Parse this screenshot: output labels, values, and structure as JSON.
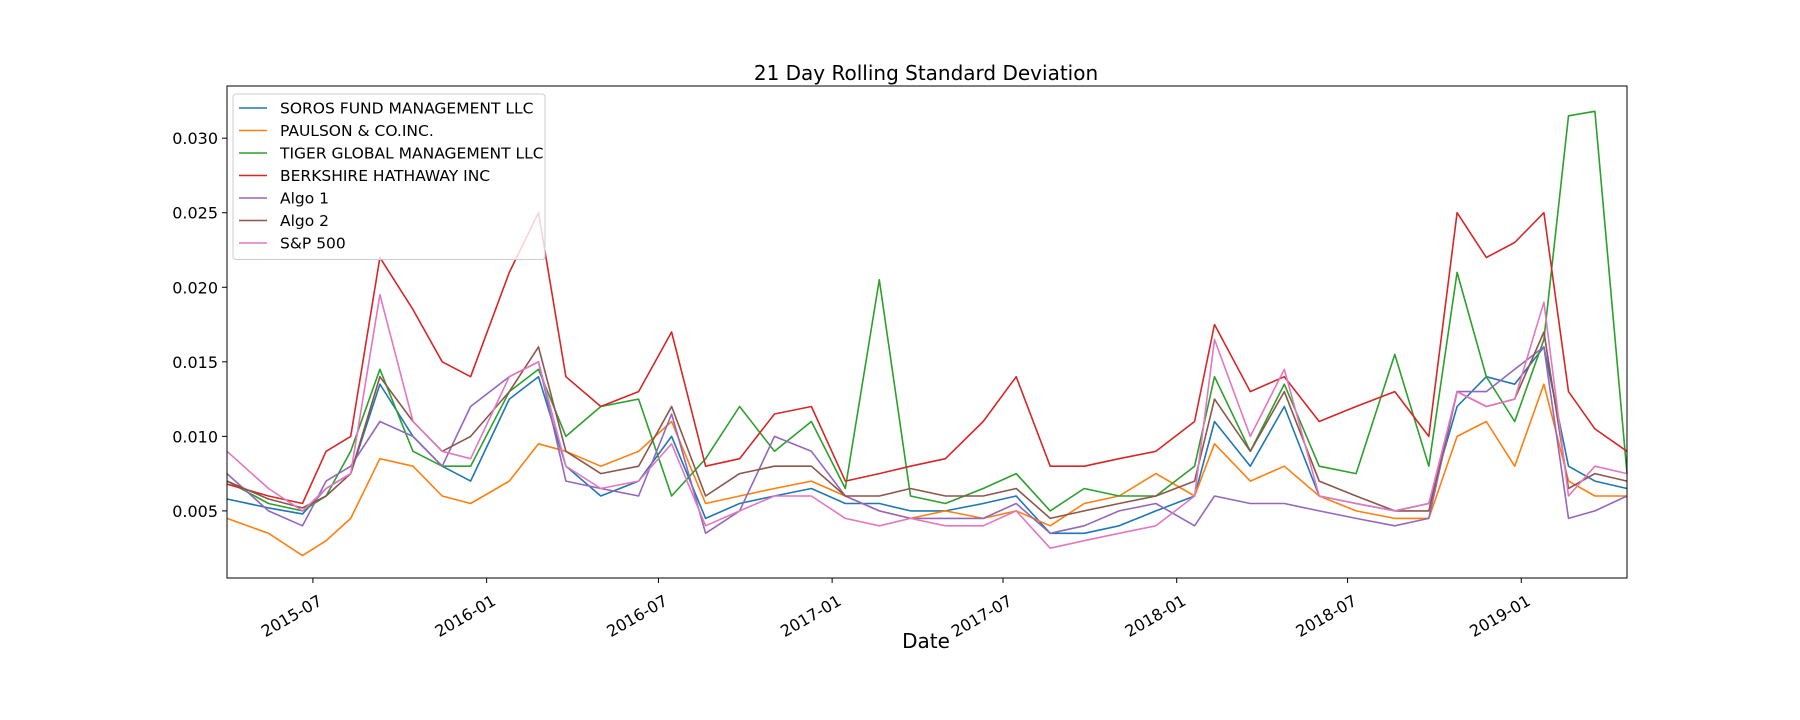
{
  "chart_data": {
    "type": "line",
    "title": "21 Day Rolling Standard Deviation",
    "xlabel": "Date",
    "ylabel": "",
    "xlim": [
      "2015-04-01",
      "2019-04-23"
    ],
    "ylim": [
      0.0005,
      0.0335
    ],
    "yticks": [
      0.005,
      0.01,
      0.015,
      0.02,
      0.025,
      0.03
    ],
    "ytick_labels": [
      "0.005",
      "0.010",
      "0.015",
      "0.020",
      "0.025",
      "0.030"
    ],
    "xticks": [
      "2015-07-01",
      "2016-01-01",
      "2016-07-01",
      "2017-01-01",
      "2017-07-01",
      "2018-01-01",
      "2018-07-01",
      "2019-01-01"
    ],
    "xtick_labels": [
      "2015-07",
      "2016-01",
      "2016-07",
      "2017-01",
      "2017-07",
      "2018-01",
      "2018-07",
      "2019-01"
    ],
    "grid": false,
    "legend_position": "top-left",
    "x": [
      "2015-04-01",
      "2015-05-15",
      "2015-06-20",
      "2015-07-15",
      "2015-08-10",
      "2015-09-10",
      "2015-10-15",
      "2015-11-15",
      "2015-12-15",
      "2016-01-25",
      "2016-02-25",
      "2016-03-25",
      "2016-05-01",
      "2016-06-10",
      "2016-07-15",
      "2016-08-20",
      "2016-09-25",
      "2016-11-01",
      "2016-12-10",
      "2017-01-15",
      "2017-02-20",
      "2017-03-25",
      "2017-05-01",
      "2017-06-10",
      "2017-07-15",
      "2017-08-20",
      "2017-09-25",
      "2017-11-01",
      "2017-12-10",
      "2018-01-20",
      "2018-02-10",
      "2018-03-20",
      "2018-04-25",
      "2018-06-01",
      "2018-07-10",
      "2018-08-20",
      "2018-09-25",
      "2018-10-25",
      "2018-11-25",
      "2018-12-25",
      "2019-01-25",
      "2019-02-20",
      "2019-03-20",
      "2019-04-23"
    ],
    "series": [
      {
        "name": "SOROS FUND MANAGEMENT LLC",
        "color": "#1f77b4",
        "values": [
          0.0058,
          0.0052,
          0.0048,
          0.0065,
          0.0075,
          0.0135,
          0.01,
          0.008,
          0.007,
          0.0125,
          0.014,
          0.008,
          0.006,
          0.007,
          0.01,
          0.0045,
          0.0055,
          0.006,
          0.0065,
          0.0055,
          0.0055,
          0.005,
          0.005,
          0.0055,
          0.006,
          0.0035,
          0.0035,
          0.004,
          0.005,
          0.006,
          0.011,
          0.008,
          0.012,
          0.006,
          0.0055,
          0.005,
          0.0055,
          0.012,
          0.014,
          0.0135,
          0.016,
          0.008,
          0.007,
          0.0065
        ]
      },
      {
        "name": "PAULSON & CO.INC.",
        "color": "#ff7f0e",
        "values": [
          0.0045,
          0.0035,
          0.002,
          0.003,
          0.0045,
          0.0085,
          0.008,
          0.006,
          0.0055,
          0.007,
          0.0095,
          0.009,
          0.008,
          0.009,
          0.011,
          0.0055,
          0.006,
          0.0065,
          0.007,
          0.006,
          0.005,
          0.0045,
          0.005,
          0.0045,
          0.005,
          0.004,
          0.0055,
          0.006,
          0.0075,
          0.006,
          0.0095,
          0.007,
          0.008,
          0.006,
          0.005,
          0.0045,
          0.0045,
          0.01,
          0.011,
          0.008,
          0.0135,
          0.007,
          0.006,
          0.006
        ]
      },
      {
        "name": "TIGER GLOBAL MANAGEMENT LLC",
        "color": "#2ca02c",
        "values": [
          0.007,
          0.0055,
          0.005,
          0.006,
          0.009,
          0.0145,
          0.009,
          0.008,
          0.008,
          0.013,
          0.0145,
          0.01,
          0.012,
          0.0125,
          0.006,
          0.0085,
          0.012,
          0.009,
          0.011,
          0.0065,
          0.0205,
          0.006,
          0.0055,
          0.0065,
          0.0075,
          0.005,
          0.0065,
          0.006,
          0.006,
          0.008,
          0.014,
          0.009,
          0.0135,
          0.008,
          0.0075,
          0.0155,
          0.008,
          0.021,
          0.014,
          0.011,
          0.0165,
          0.0315,
          0.0318,
          0.0075
        ]
      },
      {
        "name": "BERKSHIRE HATHAWAY INC",
        "color": "#d62728",
        "values": [
          0.0068,
          0.006,
          0.0055,
          0.009,
          0.01,
          0.022,
          0.0185,
          0.015,
          0.014,
          0.021,
          0.025,
          0.014,
          0.012,
          0.013,
          0.017,
          0.008,
          0.0085,
          0.0115,
          0.012,
          0.007,
          0.0075,
          0.008,
          0.0085,
          0.011,
          0.014,
          0.008,
          0.008,
          0.0085,
          0.009,
          0.011,
          0.0175,
          0.013,
          0.014,
          0.011,
          0.012,
          0.013,
          0.01,
          0.025,
          0.022,
          0.023,
          0.025,
          0.013,
          0.0105,
          0.009
        ]
      },
      {
        "name": "Algo 1",
        "color": "#9467bd",
        "values": [
          0.0075,
          0.005,
          0.004,
          0.007,
          0.008,
          0.011,
          0.01,
          0.008,
          0.012,
          0.014,
          0.015,
          0.007,
          0.0065,
          0.006,
          0.0115,
          0.0035,
          0.005,
          0.01,
          0.009,
          0.006,
          0.005,
          0.0045,
          0.0045,
          0.0045,
          0.0055,
          0.0035,
          0.004,
          0.005,
          0.0055,
          0.004,
          0.006,
          0.0055,
          0.0055,
          0.005,
          0.0045,
          0.004,
          0.0045,
          0.013,
          0.013,
          0.0145,
          0.016,
          0.0045,
          0.005,
          0.006
        ]
      },
      {
        "name": "Algo 2",
        "color": "#8c564b",
        "values": [
          0.007,
          0.0058,
          0.0052,
          0.006,
          0.0075,
          0.014,
          0.011,
          0.009,
          0.01,
          0.013,
          0.016,
          0.009,
          0.0075,
          0.008,
          0.012,
          0.006,
          0.0075,
          0.008,
          0.008,
          0.006,
          0.006,
          0.0065,
          0.006,
          0.006,
          0.0065,
          0.0045,
          0.005,
          0.0055,
          0.006,
          0.007,
          0.0125,
          0.009,
          0.013,
          0.007,
          0.006,
          0.005,
          0.005,
          0.013,
          0.012,
          0.0125,
          0.017,
          0.0065,
          0.0075,
          0.007
        ]
      },
      {
        "name": "S&P 500",
        "color": "#e377c2",
        "values": [
          0.009,
          0.0065,
          0.005,
          0.0065,
          0.0075,
          0.0195,
          0.011,
          0.009,
          0.0085,
          0.014,
          0.015,
          0.008,
          0.0065,
          0.007,
          0.0095,
          0.004,
          0.005,
          0.006,
          0.006,
          0.0045,
          0.004,
          0.0045,
          0.004,
          0.004,
          0.005,
          0.0025,
          0.003,
          0.0035,
          0.004,
          0.006,
          0.0165,
          0.01,
          0.0145,
          0.006,
          0.0055,
          0.005,
          0.0055,
          0.013,
          0.012,
          0.0125,
          0.019,
          0.006,
          0.008,
          0.0075
        ]
      }
    ]
  }
}
